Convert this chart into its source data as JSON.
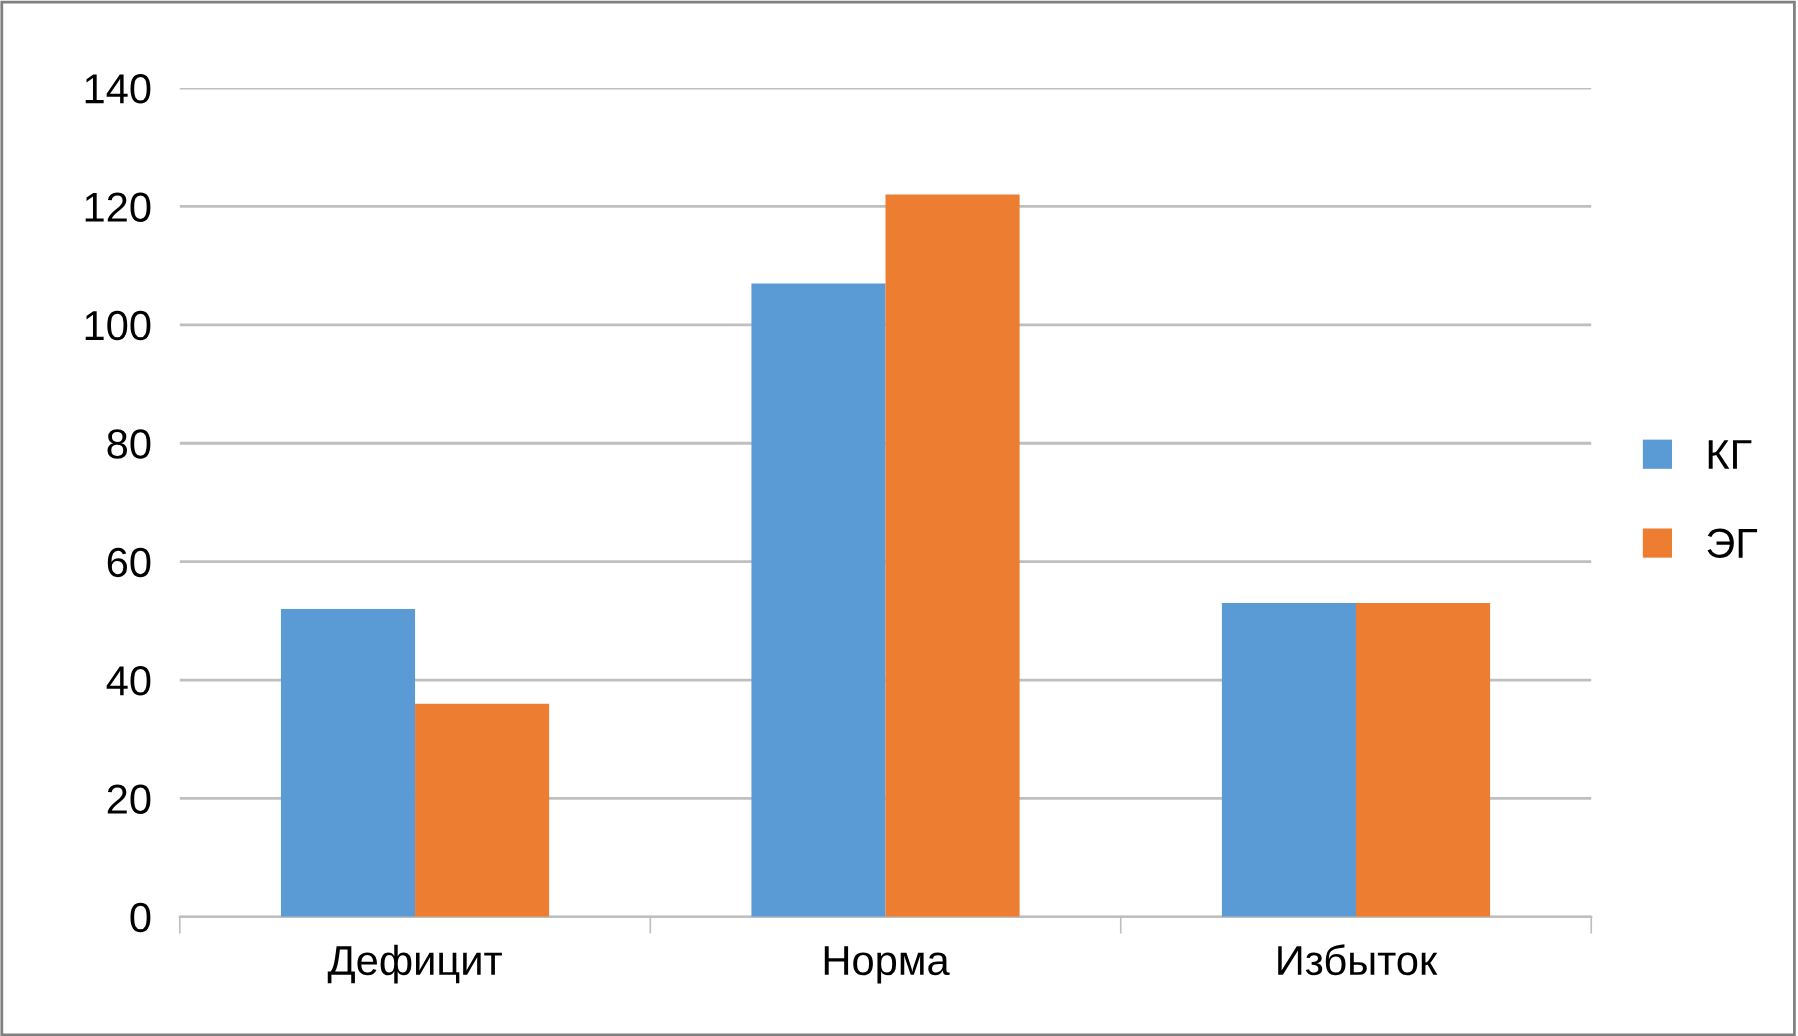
{
  "chart_data": {
    "type": "bar",
    "categories": [
      "Дефицит",
      "Норма",
      "Избыток"
    ],
    "series": [
      {
        "name": "КГ",
        "color": "#5b9bd5",
        "values": [
          52,
          107,
          53
        ]
      },
      {
        "name": "ЭГ",
        "color": "#ed7d31",
        "values": [
          36,
          122,
          53
        ]
      }
    ],
    "ylim": [
      0,
      140
    ],
    "yticks": [
      0,
      20,
      40,
      60,
      80,
      100,
      120,
      140
    ],
    "grid": "y",
    "legend": "right"
  }
}
